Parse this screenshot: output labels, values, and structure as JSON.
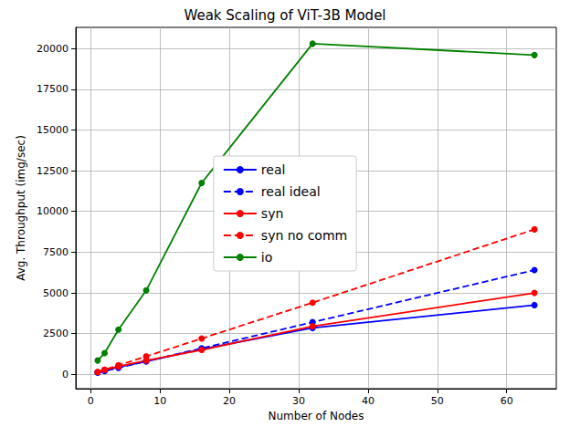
{
  "chart_data": {
    "type": "line",
    "title": "Weak Scaling of ViT-3B Model",
    "x_label": "Number of Nodes",
    "y_label": "Avg. Throughput (img/sec)",
    "x": [
      1,
      2,
      4,
      8,
      16,
      32,
      64
    ],
    "series": [
      {
        "name": "real",
        "color": "#0000ff",
        "line_style": "solid",
        "marker": "circle",
        "values": [
          130,
          250,
          450,
          800,
          1550,
          2850,
          4250
        ]
      },
      {
        "name": "real ideal",
        "color": "#0000ff",
        "line_style": "dashed",
        "marker": "circle",
        "values": [
          100,
          200,
          400,
          800,
          1600,
          3200,
          6400
        ]
      },
      {
        "name": "syn",
        "color": "#ff0000",
        "line_style": "solid",
        "marker": "circle",
        "values": [
          140,
          280,
          480,
          850,
          1500,
          2950,
          5000
        ]
      },
      {
        "name": "syn no comm",
        "color": "#ff0000",
        "line_style": "dashed",
        "marker": "circle",
        "values": [
          140,
          280,
          560,
          1100,
          2200,
          4400,
          8900
        ]
      },
      {
        "name": "io",
        "color": "#008000",
        "line_style": "solid",
        "marker": "circle",
        "values": [
          850,
          1300,
          2750,
          5150,
          11750,
          20300,
          19600
        ]
      }
    ],
    "xlim": [
      -2.15,
      67.15
    ],
    "xticks": [
      0,
      10,
      20,
      30,
      40,
      50,
      60
    ],
    "ylim": [
      -880,
      21300
    ],
    "yticks": [
      0,
      2500,
      5000,
      7500,
      10000,
      12500,
      15000,
      17500,
      20000
    ],
    "grid": true,
    "legend": "center"
  }
}
